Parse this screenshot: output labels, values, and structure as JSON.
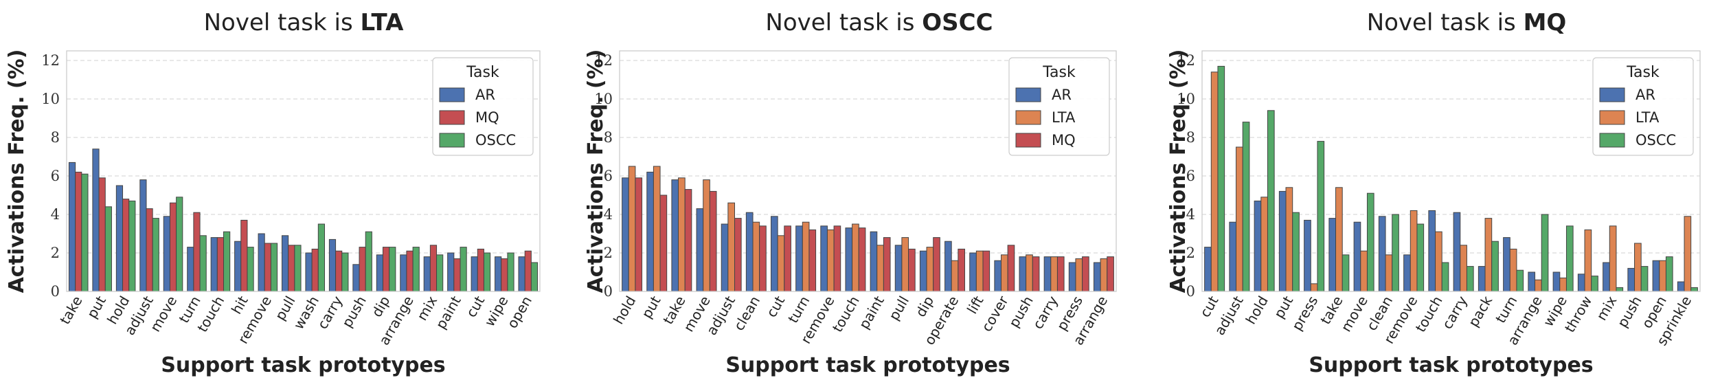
{
  "colors": {
    "AR": "#4c72b0",
    "LTA": "#dd8452",
    "MQ": "#c44e52",
    "OSCC": "#55a868"
  },
  "chart_data": [
    {
      "type": "bar",
      "title_prefix": "Novel task is ",
      "title_task": "LTA",
      "xlabel": "Support task prototypes",
      "ylabel": "Activations Freq. (%)",
      "ylim": [
        0,
        12.5
      ],
      "yticks": [
        "0",
        "2",
        "4",
        "6",
        "8",
        "10",
        "12"
      ],
      "grid": true,
      "legend": {
        "title": "Task",
        "position": "top-right"
      },
      "categories": [
        "take",
        "put",
        "hold",
        "adjust",
        "move",
        "turn",
        "touch",
        "hit",
        "remove",
        "pull",
        "wash",
        "carry",
        "push",
        "dip",
        "arrange",
        "mix",
        "paint",
        "cut",
        "wipe",
        "open"
      ],
      "series": [
        {
          "name": "AR",
          "values": [
            6.7,
            7.4,
            5.5,
            5.8,
            3.9,
            2.3,
            2.8,
            2.6,
            3.0,
            2.9,
            2.0,
            2.7,
            1.4,
            1.9,
            1.9,
            1.8,
            2.0,
            1.8,
            1.8,
            1.8
          ]
        },
        {
          "name": "MQ",
          "values": [
            6.2,
            5.9,
            4.8,
            4.3,
            4.6,
            4.1,
            2.8,
            3.7,
            2.5,
            2.4,
            2.2,
            2.1,
            2.3,
            2.3,
            2.1,
            2.4,
            1.7,
            2.2,
            1.7,
            2.1
          ]
        },
        {
          "name": "OSCC",
          "values": [
            6.1,
            4.4,
            4.7,
            3.8,
            4.9,
            2.9,
            3.1,
            2.3,
            2.5,
            2.4,
            3.5,
            2.0,
            3.1,
            2.3,
            2.3,
            1.9,
            2.3,
            2.0,
            2.0,
            1.5
          ]
        }
      ]
    },
    {
      "type": "bar",
      "title_prefix": "Novel task is ",
      "title_task": "OSCC",
      "xlabel": "Support task prototypes",
      "ylabel": "Activations Freq. (%)",
      "ylim": [
        0,
        12.5
      ],
      "yticks": [
        "0",
        "2",
        "4",
        "6",
        "8",
        "10",
        "12"
      ],
      "grid": true,
      "legend": {
        "title": "Task",
        "position": "top-right"
      },
      "categories": [
        "hold",
        "put",
        "take",
        "move",
        "adjust",
        "clean",
        "cut",
        "turn",
        "remove",
        "touch",
        "paint",
        "pull",
        "dip",
        "operate",
        "lift",
        "cover",
        "push",
        "carry",
        "press",
        "arrange"
      ],
      "series": [
        {
          "name": "AR",
          "values": [
            5.9,
            6.2,
            5.8,
            4.3,
            3.5,
            4.1,
            3.9,
            3.4,
            3.4,
            3.3,
            3.1,
            2.4,
            2.1,
            2.6,
            2.0,
            1.6,
            1.8,
            1.8,
            1.5,
            1.5
          ]
        },
        {
          "name": "LTA",
          "values": [
            6.5,
            6.5,
            5.9,
            5.8,
            4.6,
            3.6,
            2.9,
            3.6,
            3.2,
            3.5,
            2.4,
            2.8,
            2.3,
            1.6,
            2.1,
            1.9,
            1.9,
            1.8,
            1.7,
            1.7
          ]
        },
        {
          "name": "MQ",
          "values": [
            5.9,
            5.0,
            5.3,
            5.2,
            3.8,
            3.4,
            3.4,
            3.2,
            3.4,
            3.3,
            2.8,
            2.2,
            2.8,
            2.2,
            2.1,
            2.4,
            1.8,
            1.8,
            1.8,
            1.8
          ]
        }
      ]
    },
    {
      "type": "bar",
      "title_prefix": "Novel task is ",
      "title_task": "MQ",
      "xlabel": "Support task prototypes",
      "ylabel": "Activations Freq. (%)",
      "ylim": [
        0,
        12.5
      ],
      "yticks": [
        "0",
        "2",
        "4",
        "6",
        "8",
        "10",
        "12"
      ],
      "grid": true,
      "legend": {
        "title": "Task",
        "position": "top-right"
      },
      "categories": [
        "cut",
        "adjust",
        "hold",
        "put",
        "press",
        "take",
        "move",
        "clean",
        "remove",
        "touch",
        "carry",
        "pack",
        "turn",
        "arrange",
        "wipe",
        "throw",
        "mix",
        "push",
        "open",
        "sprinkle"
      ],
      "series": [
        {
          "name": "AR",
          "values": [
            2.3,
            3.6,
            4.7,
            5.2,
            3.7,
            3.8,
            3.6,
            3.9,
            1.9,
            4.2,
            4.1,
            1.3,
            2.8,
            1.0,
            1.0,
            0.9,
            1.5,
            1.2,
            1.6,
            0.5
          ]
        },
        {
          "name": "LTA",
          "values": [
            11.4,
            7.5,
            4.9,
            5.4,
            0.4,
            5.4,
            2.1,
            1.9,
            4.2,
            3.1,
            2.4,
            3.8,
            2.2,
            0.6,
            0.7,
            3.2,
            3.4,
            2.5,
            1.6,
            3.9
          ]
        },
        {
          "name": "OSCC",
          "values": [
            11.7,
            8.8,
            9.4,
            4.1,
            7.8,
            1.9,
            5.1,
            4.0,
            3.5,
            1.5,
            1.3,
            2.6,
            1.1,
            4.0,
            3.4,
            0.8,
            0.2,
            1.3,
            1.8,
            0.2
          ]
        }
      ]
    }
  ]
}
